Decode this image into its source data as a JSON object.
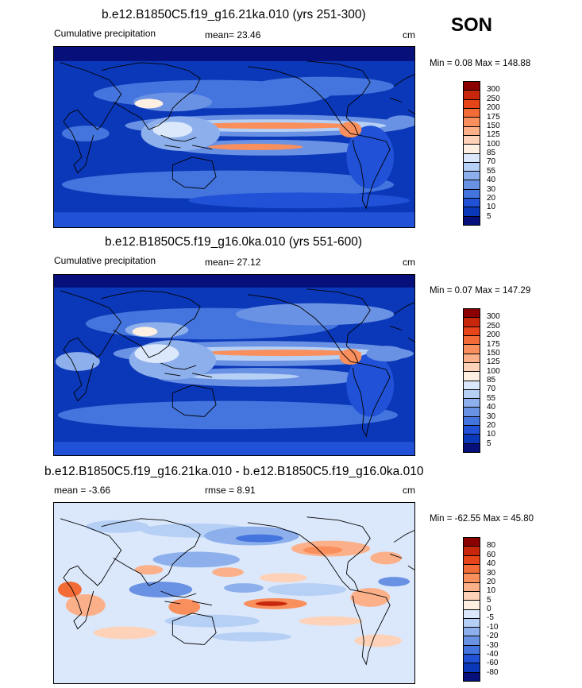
{
  "season": "SON",
  "panels": [
    {
      "title": "b.e12.B1850C5.f19_g16.21ka.010 (yrs 251-300)",
      "left_label": "Cumulative precipitation",
      "mean_text": "mean=  23.46",
      "units": "cm",
      "minmax": "Min =   0.08 Max = 148.88",
      "scale": "abs",
      "colorbar_labels": [
        "300",
        "250",
        "200",
        "175",
        "150",
        "125",
        "100",
        "85",
        "70",
        "55",
        "40",
        "30",
        "20",
        "10",
        "5"
      ],
      "colorbar_colors": [
        "#8b0000",
        "#c8270b",
        "#e8441a",
        "#f36b36",
        "#f98f5c",
        "#fbb08a",
        "#fdd2b8",
        "#fdefe2",
        "#dbe8fb",
        "#b6cff5",
        "#8db0ec",
        "#6a92e4",
        "#4474dd",
        "#2051d6",
        "#0b38b8",
        "#060f7a"
      ]
    },
    {
      "title": "b.e12.B1850C5.f19_g16.0ka.010 (yrs 551-600)",
      "left_label": "Cumulative precipitation",
      "mean_text": "mean=  27.12",
      "units": "cm",
      "minmax": "Min =   0.07 Max = 147.29",
      "scale": "abs",
      "colorbar_labels": [
        "300",
        "250",
        "200",
        "175",
        "150",
        "125",
        "100",
        "85",
        "70",
        "55",
        "40",
        "30",
        "20",
        "10",
        "5"
      ],
      "colorbar_colors": [
        "#8b0000",
        "#c8270b",
        "#e8441a",
        "#f36b36",
        "#f98f5c",
        "#fbb08a",
        "#fdd2b8",
        "#fdefe2",
        "#dbe8fb",
        "#b6cff5",
        "#8db0ec",
        "#6a92e4",
        "#4474dd",
        "#2051d6",
        "#0b38b8",
        "#060f7a"
      ]
    },
    {
      "title": "b.e12.B1850C5.f19_g16.21ka.010 - b.e12.B1850C5.f19_g16.0ka.010",
      "left_label": "mean =  -3.66",
      "mean_text": "rmse =   8.91",
      "units": "cm",
      "minmax": "Min = -62.55 Max =  45.80",
      "scale": "diff",
      "colorbar_labels": [
        "80",
        "60",
        "40",
        "30",
        "20",
        "10",
        "5",
        "0",
        "-5",
        "-10",
        "-20",
        "-30",
        "-40",
        "-60",
        "-80"
      ],
      "colorbar_colors": [
        "#8b0000",
        "#c8270b",
        "#e8441a",
        "#f36b36",
        "#f98f5c",
        "#fbb08a",
        "#fdd2b8",
        "#fdefe2",
        "#dbe8fb",
        "#b6cff5",
        "#8db0ec",
        "#6a92e4",
        "#4474dd",
        "#2051d6",
        "#0b38b8",
        "#060f7a"
      ]
    }
  ]
}
